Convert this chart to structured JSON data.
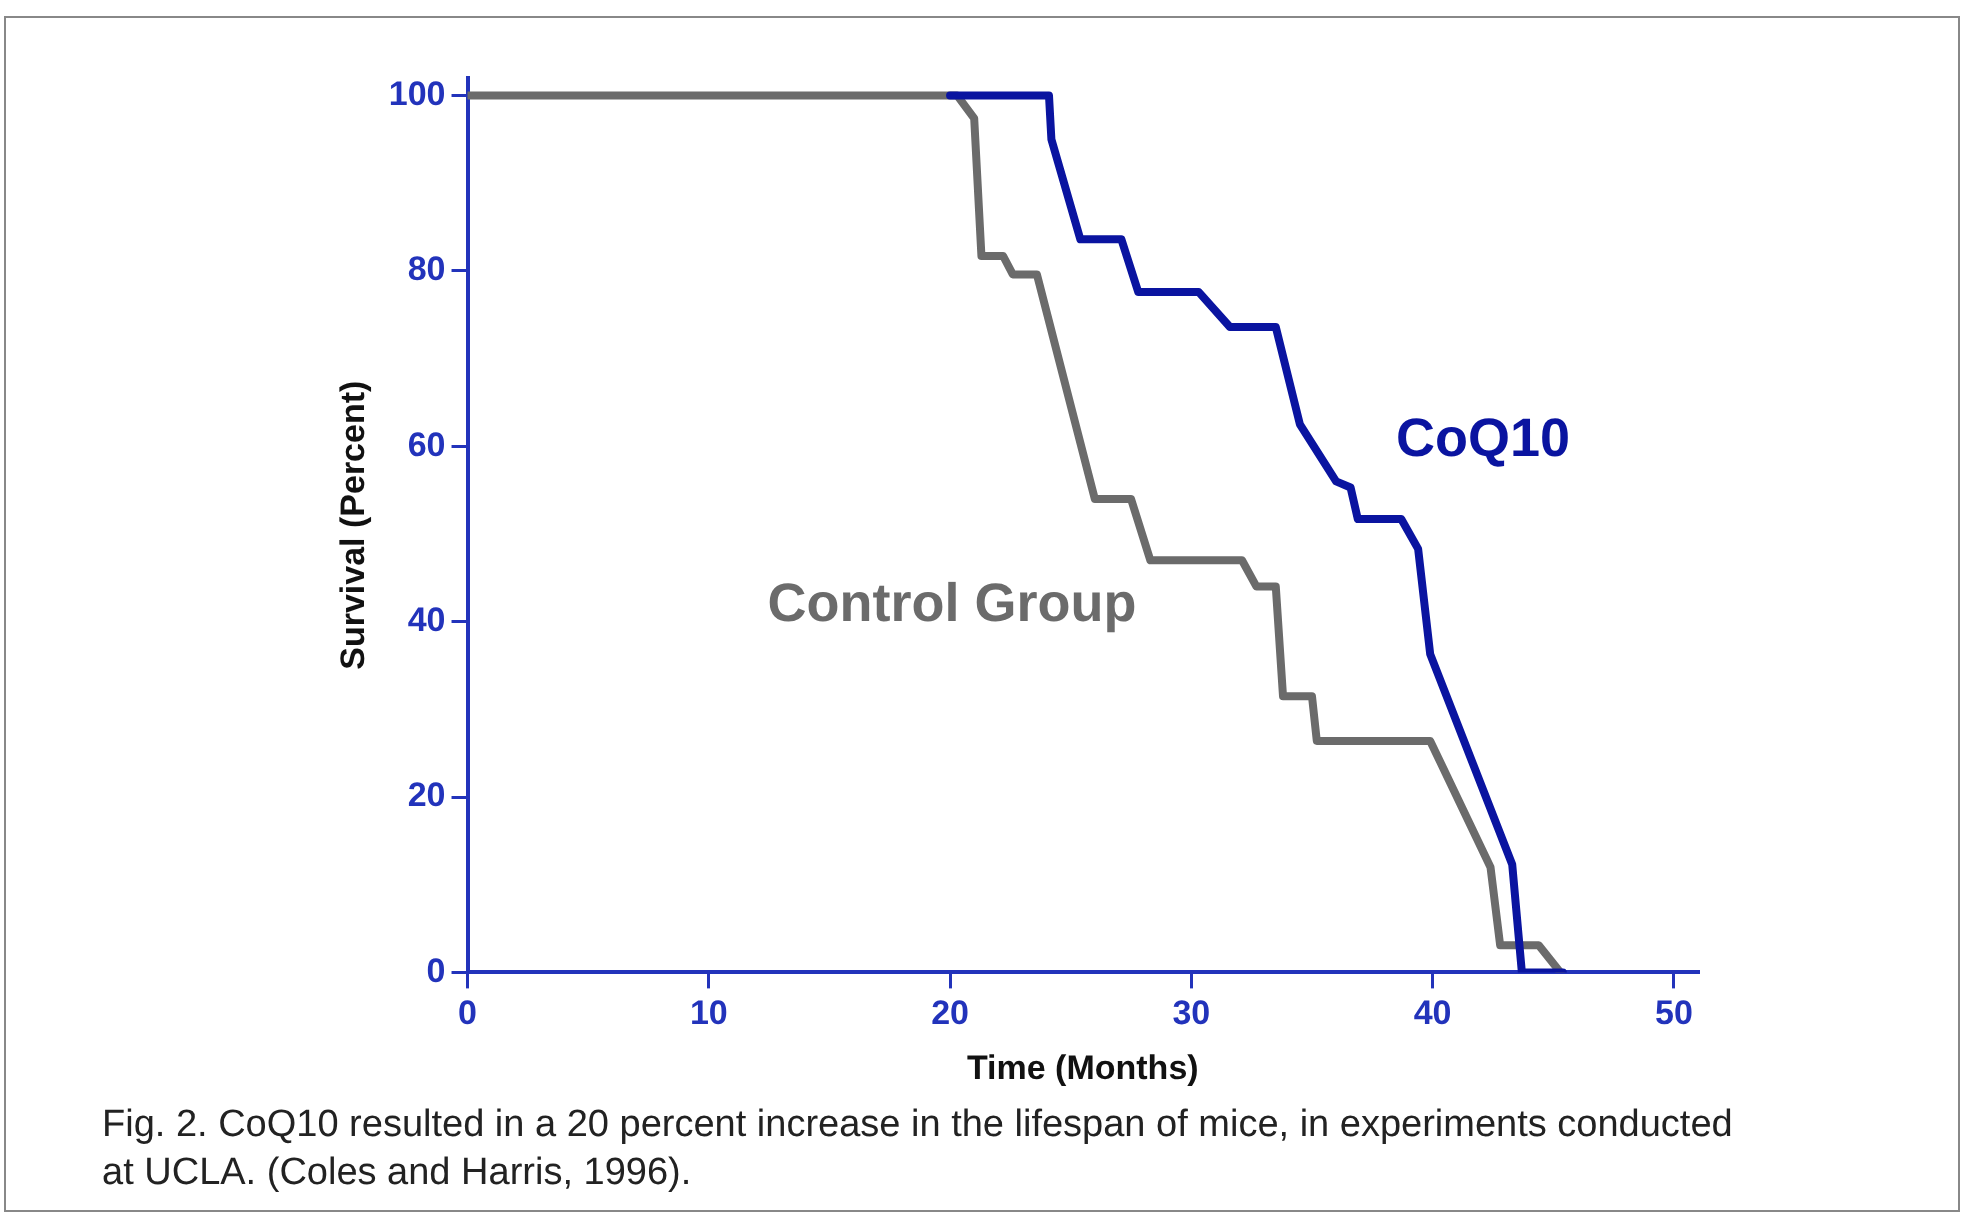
{
  "chart_data": {
    "type": "line",
    "xlabel": "Time (Months)",
    "ylabel": "Survival (Percent)",
    "xlim": [
      0,
      51
    ],
    "xticks": [
      0,
      10,
      20,
      30,
      40,
      50
    ],
    "ylim": [
      0,
      102
    ],
    "yticks": [
      0,
      20,
      40,
      60,
      80,
      100
    ],
    "grid": false,
    "legend": false,
    "marker": "none",
    "line_style": "solid",
    "series": [
      {
        "name": "CoQ10",
        "color": "#0a14a0",
        "x": [
          20.0,
          24.1,
          24.2,
          25.4,
          27.1,
          27.8,
          30.3,
          31.6,
          33.5,
          34.5,
          36.0,
          36.6,
          36.9,
          38.7,
          39.4,
          39.9,
          43.3,
          43.7,
          45.4
        ],
        "values": [
          100,
          100,
          95,
          83.6,
          83.6,
          77.6,
          77.6,
          73.6,
          73.6,
          62.5,
          56,
          55.3,
          51.7,
          51.7,
          48.3,
          36.3,
          12.3,
          0,
          0
        ]
      },
      {
        "name": "Control Group",
        "color": "#6b6b6b",
        "x": [
          0,
          20.3,
          21.0,
          21.3,
          22.2,
          22.6,
          23.6,
          26.0,
          27.5,
          28.3,
          32.1,
          32.7,
          33.5,
          33.8,
          35.0,
          35.2,
          39.9,
          42.4,
          42.8,
          44.4,
          45.3
        ],
        "values": [
          100,
          100,
          97.4,
          81.7,
          81.7,
          79.6,
          79.6,
          54,
          54,
          47,
          47,
          44,
          44,
          31.5,
          31.5,
          26.4,
          26.4,
          12,
          3.1,
          3.1,
          0
        ]
      }
    ],
    "annotations": [
      "Fig. 2. CoQ10 resulted in a 20 percent increase in the lifespan of mice, in experiments conducted at UCLA. (Coles and Harris, 1996)."
    ]
  }
}
